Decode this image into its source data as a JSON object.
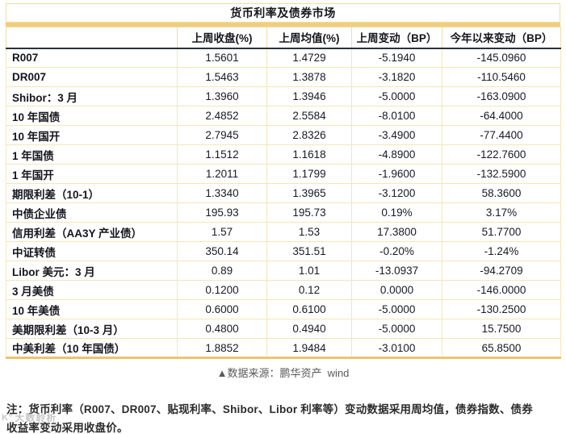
{
  "chart_data": {
    "type": "table",
    "title": "货币利率及债券市场",
    "columns": [
      "上周收盘(%)",
      "上周均值(%)",
      "上周变动（BP）",
      "今年以来变动（BP）"
    ],
    "rows": [
      {
        "label": "R007",
        "values": [
          "1.5601",
          "1.4729",
          "-5.1940",
          "-145.0960"
        ]
      },
      {
        "label": "DR007",
        "values": [
          "1.5463",
          "1.3878",
          "-3.1820",
          "-110.5460"
        ]
      },
      {
        "label": "Shibor：3 月",
        "values": [
          "1.3960",
          "1.3946",
          "-5.0000",
          "-163.0900"
        ]
      },
      {
        "label": "10 年国债",
        "values": [
          "2.4852",
          "2.5584",
          "-8.0100",
          "-64.4000"
        ]
      },
      {
        "label": "10 年国开",
        "values": [
          "2.7945",
          "2.8326",
          "-3.4900",
          "-77.4400"
        ]
      },
      {
        "label": "1 年国债",
        "values": [
          "1.1512",
          "1.1618",
          "-4.8900",
          "-122.7600"
        ]
      },
      {
        "label": "1 年国开",
        "values": [
          "1.2011",
          "1.1799",
          "-1.9600",
          "-132.5900"
        ]
      },
      {
        "label": "期限利差（10-1）",
        "values": [
          "1.3340",
          "1.3965",
          "-3.1200",
          "58.3600"
        ]
      },
      {
        "label": "中债企业债",
        "values": [
          "195.93",
          "195.73",
          "0.19%",
          "3.17%"
        ]
      },
      {
        "label": "信用利差（AA3Y 产业债）",
        "values": [
          "1.57",
          "1.53",
          "17.3800",
          "51.7700"
        ]
      },
      {
        "label": "中证转债",
        "values": [
          "350.14",
          "351.51",
          "-0.20%",
          "-1.24%"
        ]
      },
      {
        "label": "Libor 美元：3 月",
        "values": [
          "0.89",
          "1.01",
          "-13.0937",
          "-94.2709"
        ]
      },
      {
        "label": "3 月美债",
        "values": [
          "0.1200",
          "0.12",
          "0.0000",
          "-146.0000"
        ]
      },
      {
        "label": "10 年美债",
        "values": [
          "0.6000",
          "0.6100",
          "-5.0000",
          "-130.2500"
        ]
      },
      {
        "label": "美期限利差（10-3 月）",
        "values": [
          "0.4800",
          "0.4940",
          "-5.0000",
          "15.7500"
        ]
      },
      {
        "label": "中美利差（10 年国债）",
        "values": [
          "1.8852",
          "1.9484",
          "-3.0100",
          "65.8500"
        ]
      }
    ],
    "source": "▲数据来源：鹏华资产  wind",
    "note": "注：货币利率（R007、DR007、贴现利率、Shibor、Libor 利率等）变动数据采用周均值，债券指数、债券收益率变动采用收盘价。"
  },
  "watermark": {
    "logo": "K°",
    "text": "大数聆析"
  },
  "colors": {
    "border_light": "#F5E5B8",
    "border_title": "#F2DCA2",
    "gold_band": "#F0CE7D",
    "gold_bottom": "#EAC56C",
    "header_rule": "#2A313C",
    "text_dark": "#15161d",
    "text_source": "#595959",
    "text_note": "#2b2b2b"
  }
}
